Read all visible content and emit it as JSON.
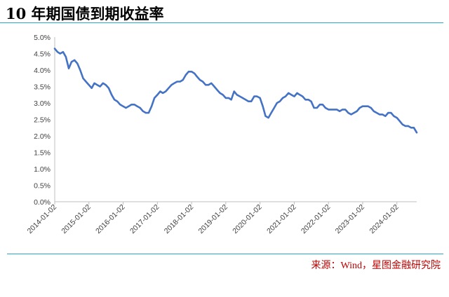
{
  "title": "10 年期国债到期收益率",
  "source": "来源：Wind，星图金融研究院",
  "colors": {
    "line": "#4472c4",
    "rule": "#2aa9c9",
    "source": "#c00000",
    "axis": "#bfbfbf"
  },
  "chart_data": {
    "type": "line",
    "title": "",
    "xlabel": "",
    "ylabel": "",
    "ylim": [
      0.0,
      5.0
    ],
    "xlim": [
      "2014-01-02",
      "2024-08-01"
    ],
    "y_ticks": [
      "0.0%",
      "0.5%",
      "1.0%",
      "1.5%",
      "2.0%",
      "2.5%",
      "3.0%",
      "3.5%",
      "4.0%",
      "4.5%",
      "5.0%"
    ],
    "x_ticks": [
      "2014-01-02",
      "2015-01-02",
      "2016-01-02",
      "2017-01-02",
      "2018-01-02",
      "2019-01-02",
      "2020-01-02",
      "2021-01-02",
      "2022-01-02",
      "2023-01-02",
      "2024-01-02"
    ],
    "grid": false,
    "legend": "none",
    "series": [
      {
        "name": "",
        "x": [
          "2014-01-02",
          "2014-02-01",
          "2014-03-01",
          "2014-04-01",
          "2014-05-01",
          "2014-06-01",
          "2014-07-01",
          "2014-08-01",
          "2014-09-01",
          "2014-10-01",
          "2014-11-01",
          "2014-12-01",
          "2015-01-02",
          "2015-02-01",
          "2015-03-01",
          "2015-04-01",
          "2015-05-01",
          "2015-06-01",
          "2015-07-01",
          "2015-08-01",
          "2015-09-01",
          "2015-10-01",
          "2015-11-01",
          "2015-12-01",
          "2016-01-02",
          "2016-02-01",
          "2016-03-01",
          "2016-04-01",
          "2016-05-01",
          "2016-06-01",
          "2016-07-01",
          "2016-08-01",
          "2016-09-01",
          "2016-10-01",
          "2016-11-01",
          "2016-12-01",
          "2017-01-02",
          "2017-02-01",
          "2017-03-01",
          "2017-04-01",
          "2017-05-01",
          "2017-06-01",
          "2017-07-01",
          "2017-08-01",
          "2017-09-01",
          "2017-10-01",
          "2017-11-01",
          "2017-12-01",
          "2018-01-02",
          "2018-02-01",
          "2018-03-01",
          "2018-04-01",
          "2018-05-01",
          "2018-06-01",
          "2018-07-01",
          "2018-08-01",
          "2018-09-01",
          "2018-10-01",
          "2018-11-01",
          "2018-12-01",
          "2019-01-02",
          "2019-02-01",
          "2019-03-01",
          "2019-04-01",
          "2019-05-01",
          "2019-06-01",
          "2019-07-01",
          "2019-08-01",
          "2019-09-01",
          "2019-10-01",
          "2019-11-01",
          "2019-12-01",
          "2020-01-02",
          "2020-02-01",
          "2020-03-01",
          "2020-04-01",
          "2020-05-01",
          "2020-06-01",
          "2020-07-01",
          "2020-08-01",
          "2020-09-01",
          "2020-10-01",
          "2020-11-01",
          "2020-12-01",
          "2021-01-02",
          "2021-02-01",
          "2021-03-01",
          "2021-04-01",
          "2021-05-01",
          "2021-06-01",
          "2021-07-01",
          "2021-08-01",
          "2021-09-01",
          "2021-10-01",
          "2021-11-01",
          "2021-12-01",
          "2022-01-02",
          "2022-02-01",
          "2022-03-01",
          "2022-04-01",
          "2022-05-01",
          "2022-06-01",
          "2022-07-01",
          "2022-08-01",
          "2022-09-01",
          "2022-10-01",
          "2022-11-01",
          "2022-12-01",
          "2023-01-02",
          "2023-02-01",
          "2023-03-01",
          "2023-04-01",
          "2023-05-01",
          "2023-06-01",
          "2023-07-01",
          "2023-08-01",
          "2023-09-01",
          "2023-10-01",
          "2023-11-01",
          "2023-12-01",
          "2024-01-02",
          "2024-02-01",
          "2024-03-01",
          "2024-04-01",
          "2024-05-01",
          "2024-06-01",
          "2024-07-01",
          "2024-08-01"
        ],
        "y": [
          4.65,
          4.55,
          4.5,
          4.55,
          4.4,
          4.05,
          4.25,
          4.3,
          4.2,
          4.0,
          3.75,
          3.65,
          3.55,
          3.45,
          3.6,
          3.55,
          3.5,
          3.6,
          3.55,
          3.45,
          3.25,
          3.1,
          3.05,
          2.95,
          2.9,
          2.85,
          2.9,
          2.95,
          2.95,
          2.9,
          2.85,
          2.75,
          2.7,
          2.7,
          2.9,
          3.15,
          3.25,
          3.35,
          3.3,
          3.35,
          3.45,
          3.55,
          3.6,
          3.65,
          3.65,
          3.7,
          3.85,
          3.95,
          3.95,
          3.9,
          3.8,
          3.7,
          3.65,
          3.55,
          3.55,
          3.6,
          3.5,
          3.4,
          3.3,
          3.25,
          3.15,
          3.15,
          3.1,
          3.35,
          3.25,
          3.2,
          3.15,
          3.1,
          3.05,
          3.05,
          3.2,
          3.2,
          3.15,
          2.9,
          2.6,
          2.55,
          2.7,
          2.85,
          3.0,
          3.05,
          3.15,
          3.2,
          3.3,
          3.25,
          3.2,
          3.3,
          3.25,
          3.2,
          3.1,
          3.1,
          3.05,
          2.85,
          2.85,
          2.95,
          2.95,
          2.85,
          2.8,
          2.8,
          2.8,
          2.8,
          2.75,
          2.8,
          2.8,
          2.7,
          2.65,
          2.7,
          2.75,
          2.85,
          2.9,
          2.9,
          2.9,
          2.85,
          2.75,
          2.7,
          2.65,
          2.65,
          2.6,
          2.7,
          2.7,
          2.6,
          2.55,
          2.45,
          2.35,
          2.3,
          2.3,
          2.25,
          2.25,
          2.1
        ]
      }
    ]
  }
}
